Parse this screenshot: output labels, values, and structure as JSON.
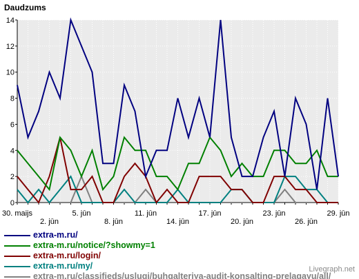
{
  "chart_data": {
    "type": "line",
    "ylabel": "Daudzums",
    "ylim": [
      0,
      14
    ],
    "yticks": [
      0,
      2,
      4,
      6,
      8,
      10,
      12,
      14
    ],
    "grid": true,
    "background": "#ebebeb",
    "x_labels": [
      {
        "i": 0,
        "label": "30. maijs",
        "row": 0
      },
      {
        "i": 3,
        "label": "2. jūn",
        "row": 1
      },
      {
        "i": 6,
        "label": "5. jūn",
        "row": 0
      },
      {
        "i": 9,
        "label": "8. jūn",
        "row": 1
      },
      {
        "i": 12,
        "label": "11. jūn",
        "row": 0
      },
      {
        "i": 15,
        "label": "14. jūn",
        "row": 1
      },
      {
        "i": 18,
        "label": "17. jūn",
        "row": 0
      },
      {
        "i": 21,
        "label": "20. jūn",
        "row": 1
      },
      {
        "i": 24,
        "label": "23. jūn",
        "row": 0
      },
      {
        "i": 27,
        "label": "26. jūn",
        "row": 1
      },
      {
        "i": 30,
        "label": "29. jūn",
        "row": 0
      }
    ],
    "series": [
      {
        "name": "extra-m.ru/",
        "color": "#000080",
        "values": [
          9,
          5,
          7,
          10,
          8,
          14,
          12,
          10,
          3,
          3,
          9,
          7,
          2,
          4,
          4,
          8,
          5,
          8,
          5,
          14,
          5,
          2,
          2,
          5,
          7,
          2,
          8,
          6,
          1,
          8,
          2
        ]
      },
      {
        "name": "extra-m.ru/notice/?showmy=1",
        "color": "#008000",
        "values": [
          4,
          3,
          2,
          1,
          5,
          4,
          2,
          4,
          1,
          2,
          5,
          4,
          4,
          2,
          2,
          1,
          3,
          3,
          5,
          4,
          2,
          3,
          2,
          2,
          4,
          4,
          3,
          3,
          4,
          2,
          2
        ]
      },
      {
        "name": "extra-m.ru/login/",
        "color": "#800000",
        "values": [
          2,
          1,
          0,
          2,
          5,
          1,
          1,
          2,
          0,
          0,
          2,
          3,
          2,
          0,
          1,
          0,
          0,
          2,
          2,
          2,
          1,
          1,
          0,
          0,
          2,
          2,
          1,
          1,
          0,
          0,
          0
        ]
      },
      {
        "name": "extra-m.ru/my/",
        "color": "#008080",
        "values": [
          1,
          0,
          1,
          0,
          1,
          2,
          0,
          0,
          0,
          0,
          1,
          0,
          0,
          0,
          0,
          1,
          0,
          0,
          0,
          0,
          1,
          1,
          0,
          0,
          0,
          2,
          2,
          1,
          1,
          0,
          0
        ]
      },
      {
        "name": "extra-m.ru/classifieds/uslugi/buhgalteriya-audit-konsalting-prelagayu/all/",
        "color": "#808080",
        "values": [
          0,
          0,
          0,
          0,
          0,
          0,
          2,
          0,
          0,
          0,
          0,
          0,
          1,
          0,
          0,
          0,
          0,
          0,
          0,
          0,
          0,
          0,
          0,
          0,
          0,
          1,
          0,
          0,
          0,
          0,
          0
        ]
      }
    ]
  },
  "credit": "Livegraph.net"
}
